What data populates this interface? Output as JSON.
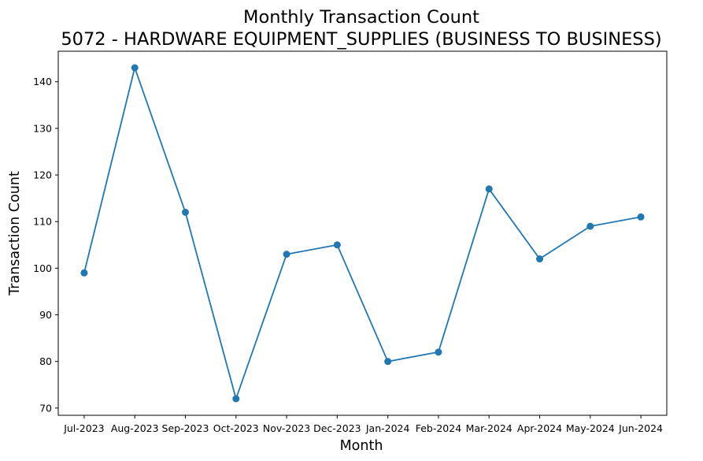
{
  "chart_data": {
    "type": "line",
    "title": "Monthly Transaction Count",
    "subtitle": "5072 - HARDWARE EQUIPMENT_SUPPLIES (BUSINESS TO BUSINESS)",
    "xlabel": "Month",
    "ylabel": "Transaction Count",
    "categories": [
      "Jul-2023",
      "Aug-2023",
      "Sep-2023",
      "Oct-2023",
      "Nov-2023",
      "Dec-2023",
      "Jan-2024",
      "Feb-2024",
      "Mar-2024",
      "Apr-2024",
      "May-2024",
      "Jun-2024"
    ],
    "series": [
      {
        "values": [
          99,
          143,
          112,
          72,
          103,
          105,
          80,
          82,
          117,
          102,
          109,
          111
        ]
      }
    ],
    "yticks": [
      70,
      80,
      90,
      100,
      110,
      120,
      130,
      140
    ],
    "ylim": [
      68.45,
      146.55
    ],
    "grid": false,
    "marker": "circle",
    "color": "#1f77b4"
  }
}
